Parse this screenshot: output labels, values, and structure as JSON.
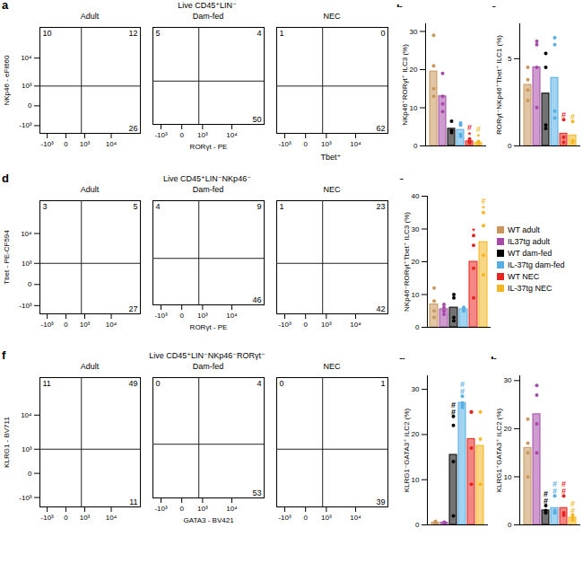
{
  "chart_data": [
    {
      "type": "flow_quadrant",
      "panel": "a",
      "gate": "Live CD45⁺LIN⁻",
      "columns": [
        "Adult",
        "Dam-fed",
        "NEC"
      ],
      "x_label": "RORγt - PE",
      "y_label": "NKp46 - eFl660",
      "xlim": [
        -2000,
        100000
      ],
      "ylim": [
        -2000,
        100000
      ],
      "xticks": [
        {
          "value": -1000,
          "label": "-10³"
        },
        0,
        {
          "value": 1000,
          "label": "10³"
        },
        {
          "value": 10000,
          "label": "10⁴"
        }
      ],
      "yticks": [
        {
          "value": -1000,
          "label": "-10³"
        },
        0,
        {
          "value": 1000,
          "label": "10³"
        },
        {
          "value": 10000,
          "label": "10⁴"
        }
      ],
      "gate_x": 700,
      "gate_y": 1000,
      "upper_left": [
        10,
        5,
        1
      ],
      "upper_right": [
        12,
        4,
        0
      ],
      "lower_right": [
        26,
        50,
        62
      ],
      "annotation": "Tbet⁺"
    },
    {
      "type": "bar",
      "panel": "b",
      "y_label": "NKp46⁺RORγt⁺ ILC3 (%)",
      "categories": [
        "WT adult",
        "IL37tg adult",
        "WT dam-fed",
        "IL-37tg dam-fed",
        "WT NEC",
        "IL-37tg NEC"
      ],
      "colors": [
        "#c9975b",
        "#a54aa8",
        "#000000",
        "#56aee3",
        "#e8241e",
        "#f3b61f"
      ],
      "values": [
        19.5,
        13,
        4.5,
        4.2,
        1.2,
        0.8
      ],
      "points": [
        [
          29,
          21,
          15,
          13
        ],
        [
          19,
          13,
          11,
          9
        ],
        [
          6.5,
          4,
          4,
          3.5
        ],
        [
          6,
          5.5,
          3,
          2.5
        ],
        [
          1.8,
          1.2,
          0.8,
          1
        ],
        [
          1.2,
          0.6,
          0.6
        ]
      ],
      "significance": [
        [],
        [],
        [],
        [],
        [
          "#",
          "*"
        ],
        [
          "#",
          "*"
        ]
      ],
      "ylim": [
        0,
        32
      ],
      "yticks": [
        0,
        10,
        20,
        30
      ],
      "tick_labels": "y"
    },
    {
      "type": "bar",
      "panel": "c",
      "y_label": "RORγt⁻NKp46⁺Tbet⁺ ILC1 (%)",
      "categories": [
        "WT adult",
        "IL37tg adult",
        "WT dam-fed",
        "IL-37tg dam-fed",
        "WT NEC",
        "IL-37tg NEC"
      ],
      "colors": [
        "#c9975b",
        "#a54aa8",
        "#000000",
        "#56aee3",
        "#e8241e",
        "#f3b61f"
      ],
      "values": [
        3.5,
        4.5,
        3,
        3.9,
        0.7,
        0.6
      ],
      "points": [
        [
          4.5,
          3.8,
          3.2,
          2.6
        ],
        [
          6,
          5.8,
          4.5,
          2.2
        ],
        [
          5.3,
          4.5,
          1.2,
          1
        ],
        [
          6.2,
          5.8,
          2,
          1.6
        ],
        [
          1.5,
          0.5,
          0.2
        ],
        [
          1.4,
          0.3,
          0.2
        ]
      ],
      "significance": [
        [],
        [],
        [],
        [],
        [
          "#"
        ],
        [
          "#"
        ]
      ],
      "ylim": [
        0,
        7
      ],
      "yticks": [
        0,
        5
      ],
      "tick_labels": "y"
    },
    {
      "type": "flow_quadrant",
      "panel": "d",
      "gate": "Live CD45⁺LIN⁻NKp46⁻",
      "columns": [
        "Adult",
        "Dam-fed",
        "NEC"
      ],
      "x_label": "RORγt - PE",
      "y_label": "Tbet - PE-CF594",
      "xlim": [
        -2000,
        100000
      ],
      "ylim": [
        -2000,
        100000
      ],
      "xticks": [
        {
          "value": -1000,
          "label": "-10³"
        },
        0,
        {
          "value": 1000,
          "label": "10³"
        },
        {
          "value": 10000,
          "label": "10⁴"
        }
      ],
      "yticks": [
        {
          "value": -1000,
          "label": "-10³"
        },
        0,
        {
          "value": 1000,
          "label": "10³"
        },
        {
          "value": 10000,
          "label": "10⁴"
        }
      ],
      "gate_x": 700,
      "gate_y": 1000,
      "upper_left": [
        3,
        4,
        1
      ],
      "upper_right": [
        5,
        9,
        23
      ],
      "lower_right": [
        27,
        46,
        42
      ]
    },
    {
      "type": "bar",
      "panel": "e",
      "y_label": "NKp46⁻RORγt⁺Tbet⁺ ILC3 (%)",
      "categories": [
        "WT adult",
        "IL37tg adult",
        "WT dam-fed",
        "IL-37tg dam-fed",
        "WT NEC",
        "IL-37tg NEC"
      ],
      "colors": [
        "#c9975b",
        "#a54aa8",
        "#000000",
        "#56aee3",
        "#e8241e",
        "#f3b61f"
      ],
      "values": [
        7,
        5.5,
        6,
        5.5,
        20,
        26
      ],
      "points": [
        [
          12,
          8,
          5,
          3
        ],
        [
          7,
          6,
          5,
          4
        ],
        [
          10,
          9,
          3,
          2
        ],
        [
          6,
          6,
          5,
          5
        ],
        [
          28,
          25,
          18,
          9
        ],
        [
          35,
          31,
          22,
          16
        ]
      ],
      "significance": [
        [],
        [],
        [],
        [],
        [
          "*"
        ],
        [
          "#",
          "*"
        ]
      ],
      "ylim": [
        0,
        40
      ],
      "yticks": [
        0,
        10,
        20,
        30,
        40
      ],
      "tick_labels": "y",
      "legend": "right"
    },
    {
      "type": "flow_quadrant",
      "panel": "f",
      "gate": "Live CD45⁺LIN⁻NKp46⁻RORγt⁻",
      "columns": [
        "Adult",
        "Dam-fed",
        "NEC"
      ],
      "x_label": "GATA3 - BV421",
      "y_label": "KLRG1 - BV711",
      "xlim": [
        -2000,
        100000
      ],
      "ylim": [
        -2000,
        100000
      ],
      "xticks": [
        {
          "value": -1000,
          "label": "-10³"
        },
        0,
        {
          "value": 1000,
          "label": "10³"
        },
        {
          "value": 10000,
          "label": "10⁴"
        }
      ],
      "yticks": [
        {
          "value": -1000,
          "label": "-10³"
        },
        0,
        {
          "value": 1000,
          "label": "10³"
        },
        {
          "value": 10000,
          "label": "10⁴"
        }
      ],
      "gate_x": 700,
      "gate_y": 1000,
      "upper_left": [
        11,
        0,
        0
      ],
      "upper_right": [
        49,
        4,
        1
      ],
      "lower_right": [
        11,
        53,
        39
      ]
    },
    {
      "type": "bar",
      "panel": "g",
      "y_label": "KLRG1⁻GATA3⁺ ILC2 (%)",
      "categories": [
        "WT adult",
        "IL37tg adult",
        "WT dam-fed",
        "IL-37tg dam-fed",
        "WT NEC",
        "IL-37tg NEC"
      ],
      "colors": [
        "#c9975b",
        "#a54aa8",
        "#000000",
        "#56aee3",
        "#e8241e",
        "#f3b61f"
      ],
      "values": [
        0.5,
        0.5,
        15.5,
        27,
        19,
        17.5
      ],
      "points": [
        [
          0.8,
          0.5,
          0.3,
          0.4
        ],
        [
          0.6,
          0.5,
          0.4,
          0.5
        ],
        [
          24,
          22,
          14,
          2
        ],
        [
          28.5,
          27,
          26,
          26.5
        ],
        [
          25,
          25,
          17,
          9
        ],
        [
          25,
          19,
          9
        ]
      ],
      "significance": [
        [],
        [],
        [
          "#",
          "#"
        ],
        [
          "#",
          "#"
        ],
        [],
        []
      ],
      "ylim": [
        0,
        33
      ],
      "yticks": [
        0,
        10,
        20,
        30
      ],
      "tick_labels": "y"
    },
    {
      "type": "bar",
      "panel": "h",
      "y_label": "KLRG1⁺GATA3⁺ ILC2 (%)",
      "categories": [
        "WT adult",
        "IL37tg adult",
        "WT dam-fed",
        "IL-37tg dam-fed",
        "WT NEC",
        "IL-37tg NEC"
      ],
      "colors": [
        "#c9975b",
        "#a54aa8",
        "#000000",
        "#56aee3",
        "#e8241e",
        "#f3b61f"
      ],
      "values": [
        16,
        23,
        3,
        3.5,
        3.5,
        1.5
      ],
      "points": [
        [
          22,
          17,
          15,
          10
        ],
        [
          29,
          27,
          21,
          15
        ],
        [
          4,
          3,
          2.5,
          2.5
        ],
        [
          6,
          3,
          2.5,
          2.5
        ],
        [
          6,
          2.5,
          2
        ],
        [
          2,
          1.5,
          1
        ]
      ],
      "significance": [
        [],
        [],
        [
          "#",
          "#"
        ],
        [
          "#",
          "#"
        ],
        [
          "#",
          "#"
        ],
        [
          "#",
          "#"
        ]
      ],
      "ylim": [
        0,
        31
      ],
      "yticks": [
        0,
        10,
        20,
        30
      ],
      "tick_labels": "y"
    }
  ]
}
